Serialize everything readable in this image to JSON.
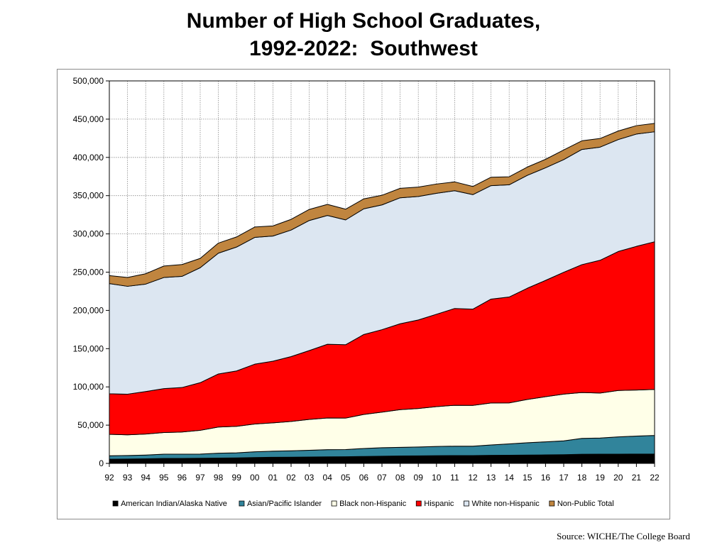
{
  "title": {
    "line1": "Number of High School Graduates,",
    "line2": "1992-2022:  Southwest"
  },
  "source": "Source: WICHE/The College Board",
  "chart_data": {
    "type": "area",
    "stacked": true,
    "x": [
      "92",
      "93",
      "94",
      "95",
      "96",
      "97",
      "98",
      "99",
      "00",
      "01",
      "02",
      "03",
      "04",
      "05",
      "06",
      "07",
      "08",
      "09",
      "10",
      "11",
      "12",
      "13",
      "14",
      "15",
      "16",
      "17",
      "18",
      "19",
      "20",
      "21",
      "22"
    ],
    "ylim": [
      0,
      500000
    ],
    "yticks": [
      "0",
      "50,000",
      "100,000",
      "150,000",
      "200,000",
      "250,000",
      "300,000",
      "350,000",
      "400,000",
      "450,000",
      "500,000"
    ],
    "grid": true,
    "legend_position": "bottom",
    "series": [
      {
        "name": "American Indian/Alaska  Native",
        "color": "#000000",
        "values": [
          5500,
          5700,
          6000,
          6500,
          6500,
          6700,
          7000,
          7200,
          7600,
          8000,
          8100,
          8400,
          8600,
          8700,
          9100,
          9400,
          9700,
          9900,
          10100,
          10200,
          10200,
          10500,
          10700,
          10900,
          11100,
          11400,
          11900,
          12000,
          12100,
          12200,
          12300
        ]
      },
      {
        "name": "Asian/Pacific Islander",
        "color": "#31849b",
        "values": [
          4500,
          4600,
          4900,
          5500,
          5500,
          5500,
          6300,
          6600,
          7600,
          8000,
          8400,
          8800,
          9400,
          9400,
          10400,
          11100,
          11300,
          11600,
          12100,
          12300,
          12300,
          13600,
          14800,
          16100,
          17100,
          18100,
          20800,
          21200,
          22600,
          23500,
          24200
        ]
      },
      {
        "name": "Black non-Hispanic",
        "color": "#ffffe8",
        "values": [
          28000,
          27000,
          27500,
          28300,
          29000,
          31000,
          34200,
          34700,
          36300,
          37000,
          38300,
          40300,
          41400,
          41100,
          44500,
          46500,
          49300,
          50300,
          52000,
          53500,
          53300,
          54900,
          53600,
          56600,
          59000,
          61100,
          59900,
          58800,
          60600,
          60200,
          60200
        ]
      },
      {
        "name": "Hispanic",
        "color": "#ff0000",
        "values": [
          53000,
          53200,
          55500,
          57500,
          58200,
          62300,
          69400,
          72300,
          78200,
          80600,
          84800,
          90000,
          96300,
          95900,
          104500,
          107800,
          112200,
          115700,
          120800,
          126500,
          125800,
          135800,
          138400,
          145400,
          152000,
          159200,
          167200,
          173500,
          181700,
          187800,
          193000
        ]
      },
      {
        "name": "White non-Hispanic",
        "color": "#dce6f1",
        "values": [
          144000,
          141000,
          140500,
          145200,
          145300,
          150300,
          157900,
          162000,
          165700,
          163600,
          165400,
          170000,
          168400,
          163200,
          164300,
          163100,
          164700,
          161400,
          158100,
          153900,
          149700,
          148300,
          146700,
          147600,
          147200,
          147300,
          150600,
          147900,
          146300,
          146800,
          143800
        ]
      },
      {
        "name": "Non-Public Total",
        "color": "#c0853f",
        "values": [
          10500,
          11500,
          13500,
          15000,
          15500,
          12200,
          13200,
          13200,
          13600,
          13200,
          14000,
          14500,
          14500,
          14000,
          13000,
          12600,
          12400,
          12300,
          12100,
          11600,
          10700,
          11000,
          10500,
          10800,
          11100,
          12600,
          11300,
          11300,
          11200,
          11000,
          11000
        ]
      }
    ]
  }
}
